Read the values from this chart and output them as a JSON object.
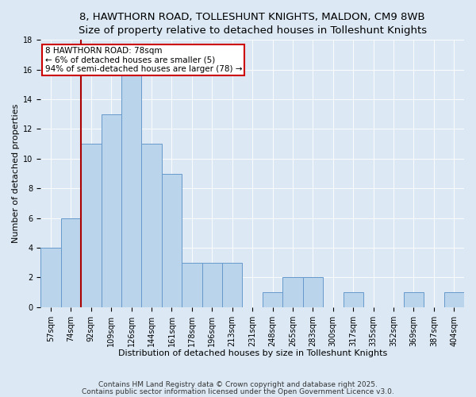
{
  "title": "8, HAWTHORN ROAD, TOLLESHUNT KNIGHTS, MALDON, CM9 8WB",
  "subtitle": "Size of property relative to detached houses in Tolleshunt Knights",
  "xlabel": "Distribution of detached houses by size in Tolleshunt Knights",
  "ylabel": "Number of detached properties",
  "categories": [
    "57sqm",
    "74sqm",
    "92sqm",
    "109sqm",
    "126sqm",
    "144sqm",
    "161sqm",
    "178sqm",
    "196sqm",
    "213sqm",
    "231sqm",
    "248sqm",
    "265sqm",
    "283sqm",
    "300sqm",
    "317sqm",
    "335sqm",
    "352sqm",
    "369sqm",
    "387sqm",
    "404sqm"
  ],
  "values": [
    4,
    6,
    11,
    13,
    16,
    11,
    9,
    3,
    3,
    3,
    0,
    1,
    2,
    2,
    0,
    1,
    0,
    0,
    1,
    0,
    1
  ],
  "bar_color": "#bad4ec",
  "bar_edge_color": "#6699cc",
  "vline_x": 1.5,
  "vline_color": "#aa0000",
  "annotation_text": "8 HAWTHORN ROAD: 78sqm\n← 6% of detached houses are smaller (5)\n94% of semi-detached houses are larger (78) →",
  "annotation_box_color": "#ffffff",
  "annotation_box_edge_color": "#cc0000",
  "background_color": "#dce9f5",
  "plot_bg_color": "#dce9f5",
  "ylim": [
    0,
    18
  ],
  "yticks": [
    0,
    2,
    4,
    6,
    8,
    10,
    12,
    14,
    16,
    18
  ],
  "footer_line1": "Contains HM Land Registry data © Crown copyright and database right 2025.",
  "footer_line2": "Contains public sector information licensed under the Open Government Licence v3.0.",
  "title_fontsize": 9.5,
  "xlabel_fontsize": 8,
  "ylabel_fontsize": 8,
  "tick_fontsize": 7,
  "annotation_fontsize": 7.5,
  "footer_fontsize": 6.5
}
